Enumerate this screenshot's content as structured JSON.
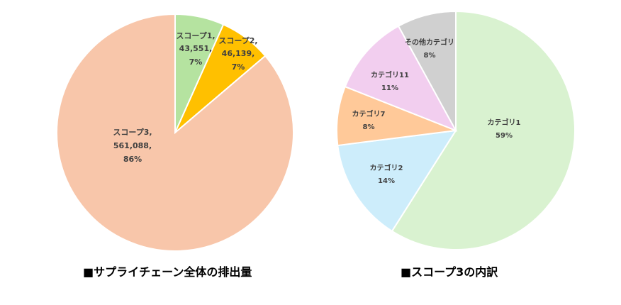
{
  "chart_data": [
    {
      "type": "pie",
      "title": "■サプライチェーン全体の排出量",
      "categories": [
        "スコープ1",
        "スコープ2",
        "スコープ3"
      ],
      "values": [
        43551,
        46139,
        561088
      ],
      "percent_labels": [
        "7%",
        "7%",
        "86%"
      ],
      "colors": [
        "#B5E3A0",
        "#FFC000",
        "#F8C6AA"
      ],
      "start_angle": "12 o'clock, clockwise",
      "legend": "none (data labels inside slices)"
    },
    {
      "type": "pie",
      "title": "■スコープ3の内訳",
      "categories": [
        "カテゴリ1",
        "カテゴリ2",
        "カテゴリ7",
        "カテゴリ11",
        "その他カテゴリ"
      ],
      "values": [
        59,
        14,
        8,
        11,
        8
      ],
      "percent_labels": [
        "59%",
        "14%",
        "8%",
        "11%",
        "8%"
      ],
      "colors": [
        "#D9F2D0",
        "#CDEDFB",
        "#FFC999",
        "#F2CEEF",
        "#D0D0D0"
      ],
      "start_angle": "12 o'clock, clockwise",
      "legend": "none (data labels inside slices)"
    }
  ],
  "left": {
    "caption": "■サプライチェーン全体の排出量",
    "labels": [
      {
        "line1": "スコープ1,",
        "line2": "43,551,",
        "line3": "7%"
      },
      {
        "line1": "スコープ2,",
        "line2": "46,139,",
        "line3": "7%"
      },
      {
        "line1": "スコープ3,",
        "line2": "561,088,",
        "line3": "86%"
      }
    ]
  },
  "right": {
    "caption": "■スコープ3の内訳",
    "labels": [
      {
        "name": "カテゴリ1",
        "pct": "59%"
      },
      {
        "name": "カテゴリ2",
        "pct": "14%"
      },
      {
        "name": "カテゴリ7",
        "pct": "8%"
      },
      {
        "name": "カテゴリ11",
        "pct": "11%"
      },
      {
        "name": "その他カテゴリ",
        "pct": "8%"
      }
    ]
  }
}
